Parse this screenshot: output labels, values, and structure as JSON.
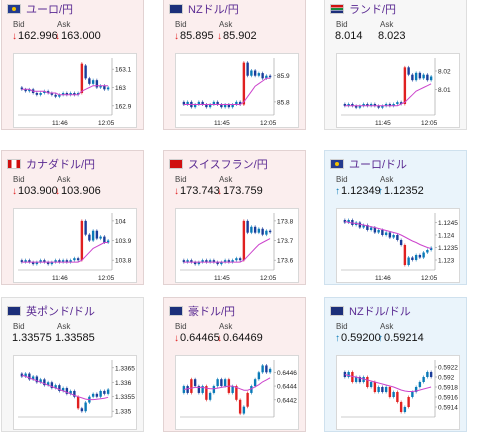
{
  "labels": {
    "bid": "Bid",
    "ask": "Ask"
  },
  "colors": {
    "candle_up": "#0a7ab8",
    "candle_down": "#1a3d9a",
    "candle_spike": "#e02020",
    "ma": "#cc44cc",
    "ma2": "#4aa8e0",
    "arrow_down": "#e02020",
    "arrow_up": "#0a7ab8"
  },
  "cards": [
    {
      "pair": "ユーロ/円",
      "flag": "eu",
      "bid": "162.996",
      "ask": "163.000",
      "trend": "down",
      "bg": "down",
      "ticks": [
        "163.1",
        "163",
        "162.9"
      ],
      "times": [
        "11:46",
        "12:05"
      ],
      "candles": [
        [
          163.0,
          162.99
        ],
        [
          162.99,
          162.98
        ],
        [
          162.98,
          162.99
        ],
        [
          162.99,
          162.97
        ],
        [
          162.97,
          162.96
        ],
        [
          162.96,
          162.97
        ],
        [
          162.97,
          162.98
        ],
        [
          162.98,
          162.97
        ],
        [
          162.97,
          162.96
        ],
        [
          162.96,
          162.95
        ],
        [
          162.95,
          162.96
        ],
        [
          162.96,
          162.97
        ],
        [
          162.97,
          162.96
        ],
        [
          162.96,
          162.97
        ],
        [
          162.97,
          162.96
        ],
        [
          162.96,
          162.97
        ],
        [
          162.97,
          163.13
        ],
        [
          163.12,
          163.05
        ],
        [
          163.05,
          163.02
        ],
        [
          163.02,
          163.04
        ],
        [
          163.04,
          163.0
        ],
        [
          163.0,
          163.01
        ],
        [
          163.01,
          162.99
        ],
        [
          162.99,
          163.0
        ]
      ],
      "ma": [
        162.99,
        162.99,
        162.99,
        162.98,
        162.98,
        162.98,
        162.98,
        162.97,
        162.97,
        162.97,
        162.96,
        162.96,
        162.96,
        162.96,
        162.96,
        162.96,
        162.98,
        162.99,
        163.0,
        163.01,
        163.01,
        163.01,
        163.01,
        163.01
      ],
      "ylim": [
        162.85,
        163.15
      ]
    },
    {
      "pair": "NZドル/円",
      "flag": "nz",
      "bid": "85.895",
      "ask": "85.902",
      "trend": "down",
      "bg": "down",
      "ticks": [
        "85.9",
        "85.8"
      ],
      "times": [
        "11:45",
        "12:05"
      ],
      "candles": [
        [
          85.8,
          85.79
        ],
        [
          85.79,
          85.8
        ],
        [
          85.8,
          85.78
        ],
        [
          85.78,
          85.79
        ],
        [
          85.79,
          85.8
        ],
        [
          85.8,
          85.79
        ],
        [
          85.79,
          85.78
        ],
        [
          85.78,
          85.79
        ],
        [
          85.79,
          85.8
        ],
        [
          85.8,
          85.79
        ],
        [
          85.79,
          85.78
        ],
        [
          85.78,
          85.79
        ],
        [
          85.79,
          85.78
        ],
        [
          85.78,
          85.79
        ],
        [
          85.79,
          85.8
        ],
        [
          85.8,
          85.79
        ],
        [
          85.79,
          85.95
        ],
        [
          85.95,
          85.9
        ],
        [
          85.9,
          85.92
        ],
        [
          85.92,
          85.9
        ],
        [
          85.9,
          85.91
        ],
        [
          85.91,
          85.89
        ],
        [
          85.89,
          85.9
        ],
        [
          85.9,
          85.895
        ]
      ],
      "ma": [
        85.79,
        85.79,
        85.79,
        85.79,
        85.79,
        85.79,
        85.79,
        85.79,
        85.79,
        85.79,
        85.79,
        85.79,
        85.79,
        85.79,
        85.79,
        85.79,
        85.8,
        85.82,
        85.84,
        85.86,
        85.87,
        85.88,
        85.89,
        85.89
      ],
      "ylim": [
        85.75,
        85.96
      ]
    },
    {
      "pair": "ランド/円",
      "flag": "za",
      "bid": "8.014",
      "ask": "8.023",
      "trend": "none",
      "bg": "neutral",
      "ticks": [
        "8.02",
        "8.01"
      ],
      "times": [
        "11:45",
        "12:05"
      ],
      "candles": [
        [
          8.002,
          8.001
        ],
        [
          8.001,
          8.002
        ],
        [
          8.002,
          8.001
        ],
        [
          8.001,
          8.0
        ],
        [
          8.0,
          8.001
        ],
        [
          8.001,
          8.002
        ],
        [
          8.002,
          8.001
        ],
        [
          8.001,
          8.002
        ],
        [
          8.002,
          8.001
        ],
        [
          8.001,
          8.0
        ],
        [
          8.0,
          8.001
        ],
        [
          8.001,
          8.002
        ],
        [
          8.002,
          8.001
        ],
        [
          8.001,
          8.002
        ],
        [
          8.002,
          8.003
        ],
        [
          8.003,
          8.002
        ],
        [
          8.002,
          8.022
        ],
        [
          8.022,
          8.018
        ],
        [
          8.018,
          8.015
        ],
        [
          8.015,
          8.019
        ],
        [
          8.019,
          8.016
        ],
        [
          8.016,
          8.018
        ],
        [
          8.018,
          8.015
        ],
        [
          8.015,
          8.017
        ]
      ],
      "ma": [
        8.001,
        8.001,
        8.001,
        8.001,
        8.001,
        8.001,
        8.001,
        8.001,
        8.001,
        8.001,
        8.001,
        8.001,
        8.001,
        8.001,
        8.001,
        8.002,
        8.003,
        8.005,
        8.007,
        8.009,
        8.01,
        8.011,
        8.012,
        8.013
      ],
      "ylim": [
        7.996,
        8.026
      ]
    },
    {
      "pair": "カナダドル/円",
      "flag": "ca",
      "bid": "103.900",
      "ask": "103.906",
      "trend": "down",
      "bg": "down",
      "ticks": [
        "104",
        "103.9",
        "103.8"
      ],
      "times": [
        "11:46",
        "12:05"
      ],
      "candles": [
        [
          103.8,
          103.79
        ],
        [
          103.79,
          103.8
        ],
        [
          103.8,
          103.79
        ],
        [
          103.79,
          103.78
        ],
        [
          103.78,
          103.79
        ],
        [
          103.79,
          103.8
        ],
        [
          103.8,
          103.79
        ],
        [
          103.79,
          103.78
        ],
        [
          103.78,
          103.79
        ],
        [
          103.79,
          103.8
        ],
        [
          103.8,
          103.79
        ],
        [
          103.79,
          103.8
        ],
        [
          103.8,
          103.79
        ],
        [
          103.79,
          103.8
        ],
        [
          103.8,
          103.81
        ],
        [
          103.81,
          103.8
        ],
        [
          103.8,
          104.0
        ],
        [
          104.0,
          103.93
        ],
        [
          103.93,
          103.9
        ],
        [
          103.9,
          103.95
        ],
        [
          103.95,
          103.91
        ],
        [
          103.91,
          103.92
        ],
        [
          103.92,
          103.89
        ],
        [
          103.89,
          103.9
        ]
      ],
      "ma": [
        103.79,
        103.79,
        103.79,
        103.79,
        103.79,
        103.79,
        103.79,
        103.79,
        103.79,
        103.79,
        103.79,
        103.79,
        103.79,
        103.79,
        103.79,
        103.79,
        103.8,
        103.82,
        103.84,
        103.86,
        103.87,
        103.88,
        103.89,
        103.89
      ],
      "ylim": [
        103.75,
        104.03
      ]
    },
    {
      "pair": "スイスフラン/円",
      "flag": "ch",
      "bid": "173.743",
      "ask": "173.759",
      "trend": "down",
      "bg": "down",
      "ticks": [
        "173.8",
        "173.7",
        "173.6"
      ],
      "times": [
        "11:45",
        "12:05"
      ],
      "candles": [
        [
          173.6,
          173.59
        ],
        [
          173.59,
          173.6
        ],
        [
          173.6,
          173.59
        ],
        [
          173.59,
          173.58
        ],
        [
          173.58,
          173.59
        ],
        [
          173.59,
          173.6
        ],
        [
          173.6,
          173.59
        ],
        [
          173.59,
          173.6
        ],
        [
          173.6,
          173.59
        ],
        [
          173.59,
          173.58
        ],
        [
          173.58,
          173.59
        ],
        [
          173.59,
          173.6
        ],
        [
          173.6,
          173.59
        ],
        [
          173.59,
          173.6
        ],
        [
          173.6,
          173.61
        ],
        [
          173.61,
          173.6
        ],
        [
          173.6,
          173.8
        ],
        [
          173.8,
          173.74
        ],
        [
          173.74,
          173.77
        ],
        [
          173.77,
          173.74
        ],
        [
          173.74,
          173.76
        ],
        [
          173.76,
          173.73
        ],
        [
          173.73,
          173.75
        ],
        [
          173.75,
          173.745
        ]
      ],
      "ma": [
        173.59,
        173.59,
        173.59,
        173.59,
        173.59,
        173.59,
        173.59,
        173.59,
        173.59,
        173.59,
        173.59,
        173.59,
        173.59,
        173.59,
        173.59,
        173.59,
        173.6,
        173.62,
        173.64,
        173.66,
        173.68,
        173.69,
        173.7,
        173.71
      ],
      "ylim": [
        173.55,
        173.83
      ]
    },
    {
      "pair": "ユーロ/ドル",
      "flag": "eu",
      "bid": "1.12349",
      "ask": "1.12352",
      "trend": "up",
      "bg": "up",
      "ticks": [
        "1.1245",
        "1.124",
        "1.1235",
        "1.123"
      ],
      "times": [
        "11:46",
        "12:05"
      ],
      "candles": [
        [
          1.1246,
          1.1245
        ],
        [
          1.1245,
          1.1246
        ],
        [
          1.1246,
          1.1244
        ],
        [
          1.1244,
          1.1245
        ],
        [
          1.1245,
          1.1243
        ],
        [
          1.1243,
          1.1244
        ],
        [
          1.1244,
          1.1242
        ],
        [
          1.1242,
          1.1243
        ],
        [
          1.1243,
          1.1241
        ],
        [
          1.1241,
          1.1242
        ],
        [
          1.1242,
          1.124
        ],
        [
          1.124,
          1.1241
        ],
        [
          1.1241,
          1.1239
        ],
        [
          1.1239,
          1.124
        ],
        [
          1.124,
          1.1238
        ],
        [
          1.1238,
          1.1236
        ],
        [
          1.1236,
          1.1228
        ],
        [
          1.1228,
          1.1231
        ],
        [
          1.1231,
          1.123
        ],
        [
          1.123,
          1.1232
        ],
        [
          1.1232,
          1.1231
        ],
        [
          1.1231,
          1.1233
        ],
        [
          1.1233,
          1.1234
        ],
        [
          1.1234,
          1.12349
        ]
      ],
      "ma": [
        1.12455,
        1.1245,
        1.12448,
        1.12446,
        1.12443,
        1.1244,
        1.12437,
        1.12433,
        1.1243,
        1.12426,
        1.12422,
        1.12418,
        1.12414,
        1.1241,
        1.12406,
        1.124,
        1.12392,
        1.12384,
        1.12376,
        1.1237,
        1.12362,
        1.12356,
        1.1235,
        1.12346
      ],
      "ylim": [
        1.1226,
        1.1248
      ]
    },
    {
      "pair": "英ポンド/ドル",
      "flag": "gb",
      "bid": "1.33575",
      "ask": "1.33585",
      "trend": "none",
      "bg": "neutral",
      "ticks": [
        "1.3365",
        "1.336",
        "1.3355",
        "1.335"
      ],
      "times": [
        "",
        ""
      ],
      "candles": [
        [
          1.3363,
          1.3362
        ],
        [
          1.3362,
          1.3363
        ],
        [
          1.3363,
          1.3361
        ],
        [
          1.3361,
          1.3362
        ],
        [
          1.3362,
          1.336
        ],
        [
          1.336,
          1.3361
        ],
        [
          1.3361,
          1.3359
        ],
        [
          1.3359,
          1.336
        ],
        [
          1.336,
          1.3358
        ],
        [
          1.3358,
          1.3359
        ],
        [
          1.3359,
          1.3357
        ],
        [
          1.3357,
          1.3358
        ],
        [
          1.3358,
          1.3356
        ],
        [
          1.3356,
          1.3357
        ],
        [
          1.3357,
          1.3355
        ],
        [
          1.3355,
          1.3351
        ],
        [
          1.3351,
          1.335
        ],
        [
          1.335,
          1.3353
        ],
        [
          1.3353,
          1.3355
        ],
        [
          1.3355,
          1.3356
        ],
        [
          1.3356,
          1.3355
        ],
        [
          1.3355,
          1.3357
        ],
        [
          1.3357,
          1.3356
        ],
        [
          1.3356,
          1.33575
        ]
      ],
      "ma": [
        1.33625,
        1.3362,
        1.33615,
        1.3361,
        1.33605,
        1.336,
        1.33595,
        1.3359,
        1.33585,
        1.3358,
        1.33575,
        1.3357,
        1.33565,
        1.3356,
        1.33555,
        1.3355,
        1.33546,
        1.33542,
        1.3354,
        1.3354,
        1.33541,
        1.33543,
        1.33545,
        1.33548
      ],
      "ylim": [
        1.3348,
        1.3367
      ]
    },
    {
      "pair": "豪ドル/円",
      "flag": "au",
      "bid": "0.64465",
      "ask": "0.64469",
      "trend": "down",
      "bg": "down",
      "ticks": [
        "0.6446",
        "0.6444",
        "0.6442"
      ],
      "times": [
        "",
        ""
      ],
      "candles": [
        [
          0.6443,
          0.6444
        ],
        [
          0.6444,
          0.6443
        ],
        [
          0.6443,
          0.6445
        ],
        [
          0.6445,
          0.6444
        ],
        [
          0.6444,
          0.6443
        ],
        [
          0.6443,
          0.6444
        ],
        [
          0.6444,
          0.6442
        ],
        [
          0.6442,
          0.6443
        ],
        [
          0.6443,
          0.6444
        ],
        [
          0.6444,
          0.6445
        ],
        [
          0.6445,
          0.6444
        ],
        [
          0.6444,
          0.6445
        ],
        [
          0.6445,
          0.6443
        ],
        [
          0.6443,
          0.6444
        ],
        [
          0.6444,
          0.6442
        ],
        [
          0.6442,
          0.644
        ],
        [
          0.644,
          0.6441
        ],
        [
          0.6441,
          0.6443
        ],
        [
          0.6443,
          0.6444
        ],
        [
          0.6444,
          0.6445
        ],
        [
          0.6445,
          0.6446
        ],
        [
          0.6446,
          0.6447
        ],
        [
          0.6447,
          0.6446
        ],
        [
          0.6446,
          0.64465
        ]
      ],
      "ma": [
        0.64435,
        0.64436,
        0.64437,
        0.64438,
        0.64438,
        0.64438,
        0.64437,
        0.64436,
        0.64436,
        0.64437,
        0.64438,
        0.64439,
        0.6444,
        0.6444,
        0.64438,
        0.64436,
        0.64434,
        0.64434,
        0.64436,
        0.64439,
        0.64442,
        0.64446,
        0.64449,
        0.64452
      ],
      "ylim": [
        0.64395,
        0.64475
      ]
    },
    {
      "pair": "NZドル/ドル",
      "flag": "nz",
      "bid": "0.59200",
      "ask": "0.59214",
      "trend": "up",
      "bg": "up",
      "ticks": [
        "0.5922",
        "0.592",
        "0.5918",
        "0.5916",
        "0.5914"
      ],
      "times": [
        "",
        ""
      ],
      "candles": [
        [
          0.5921,
          0.592
        ],
        [
          0.592,
          0.5921
        ],
        [
          0.5921,
          0.5919
        ],
        [
          0.5919,
          0.592
        ],
        [
          0.592,
          0.5919
        ],
        [
          0.5919,
          0.592
        ],
        [
          0.592,
          0.5918
        ],
        [
          0.5918,
          0.5919
        ],
        [
          0.5919,
          0.5917
        ],
        [
          0.5917,
          0.5918
        ],
        [
          0.5918,
          0.5917
        ],
        [
          0.5917,
          0.5918
        ],
        [
          0.5918,
          0.5916
        ],
        [
          0.5916,
          0.5917
        ],
        [
          0.5917,
          0.5915
        ],
        [
          0.5915,
          0.5913
        ],
        [
          0.5913,
          0.5914
        ],
        [
          0.5914,
          0.5916
        ],
        [
          0.5916,
          0.5917
        ],
        [
          0.5917,
          0.5918
        ],
        [
          0.5918,
          0.5919
        ],
        [
          0.5919,
          0.592
        ],
        [
          0.592,
          0.5921
        ],
        [
          0.5921,
          0.592
        ]
      ],
      "ma": [
        0.59205,
        0.59203,
        0.59201,
        0.592,
        0.59198,
        0.59196,
        0.59194,
        0.59192,
        0.5919,
        0.59188,
        0.59186,
        0.59184,
        0.59182,
        0.5918,
        0.59177,
        0.59174,
        0.59172,
        0.59171,
        0.59171,
        0.59172,
        0.59174,
        0.59176,
        0.59178,
        0.5918
      ],
      "ylim": [
        0.5912,
        0.5923
      ]
    }
  ]
}
